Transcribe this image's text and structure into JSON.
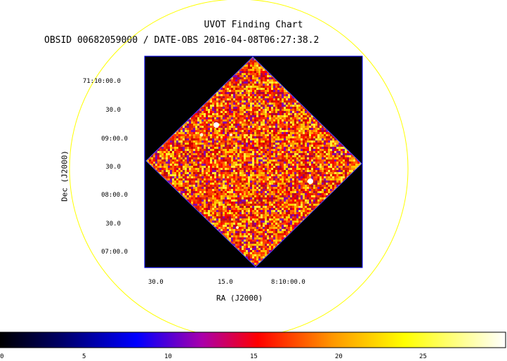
{
  "chart_data": {
    "type": "heatmap",
    "title": "UVOT Finding Chart",
    "subtitle": "OBSID 00682059000 / DATE-OBS 2016-04-08T06:27:38.2",
    "xlabel": "RA (J2000)",
    "ylabel": "Dec (J2000)",
    "x_ticks": [
      "30.0",
      "15.0",
      "8:10:00.0"
    ],
    "y_ticks": [
      "71:10:00.0",
      "30.0",
      "09:00.0",
      "30.0",
      "08:00.0",
      "30.0",
      "07:00.0"
    ],
    "colorbar": {
      "ticks": [
        "0",
        "5",
        "10",
        "15",
        "20",
        "25"
      ],
      "range": [
        0,
        29.5
      ],
      "colors": [
        "#000000",
        "#0000ff",
        "#ff0000",
        "#ffff00",
        "#ffffff"
      ]
    },
    "circle_color": "#ffff00",
    "frame_color": "#0000ff"
  }
}
